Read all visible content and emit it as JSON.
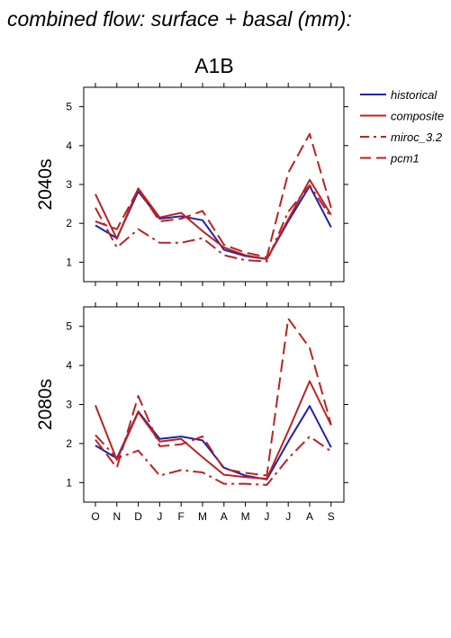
{
  "title": "combined flow: surface + basal (mm):",
  "chart_data": {
    "type": "line",
    "scenario": "A1B",
    "categories": [
      "O",
      "N",
      "D",
      "J",
      "F",
      "M",
      "A",
      "M",
      "J",
      "J",
      "A",
      "S"
    ],
    "yticks": [
      1,
      2,
      3,
      4,
      5
    ],
    "ylim": [
      0.5,
      5.5
    ],
    "legend": {
      "position": "top-right",
      "items": [
        {
          "name": "historical",
          "color": "#2222aa",
          "dash": "solid"
        },
        {
          "name": "composite",
          "color": "#bb2222",
          "dash": "solid"
        },
        {
          "name": "miroc_3.2",
          "color": "#bb2222",
          "dash": "dashdot"
        },
        {
          "name": "pcm1",
          "color": "#bb2222",
          "dash": "dash"
        }
      ]
    },
    "panels": [
      {
        "label": "2040s",
        "series": [
          {
            "name": "historical",
            "values": [
              1.95,
              1.62,
              2.82,
              2.12,
              2.18,
              2.08,
              1.32,
              1.16,
              1.08,
              2.05,
              2.96,
              1.9
            ]
          },
          {
            "name": "composite",
            "values": [
              2.75,
              1.6,
              2.9,
              2.15,
              2.27,
              1.8,
              1.38,
              1.18,
              1.08,
              2.1,
              3.12,
              2.22
            ]
          },
          {
            "name": "miroc_3.2",
            "values": [
              2.4,
              1.38,
              1.85,
              1.5,
              1.5,
              1.62,
              1.18,
              1.05,
              1.02,
              2.3,
              2.98,
              2.15
            ]
          },
          {
            "name": "pcm1",
            "values": [
              2.05,
              1.85,
              2.88,
              2.05,
              2.12,
              2.32,
              1.45,
              1.25,
              1.13,
              3.3,
              4.3,
              2.4
            ]
          }
        ]
      },
      {
        "label": "2080s",
        "series": [
          {
            "name": "historical",
            "values": [
              1.95,
              1.62,
              2.82,
              2.12,
              2.18,
              2.08,
              1.38,
              1.18,
              1.08,
              2.05,
              2.96,
              1.9
            ]
          },
          {
            "name": "composite",
            "values": [
              2.98,
              1.58,
              2.8,
              2.05,
              2.12,
              1.65,
              1.2,
              1.14,
              1.1,
              2.32,
              3.6,
              2.47
            ]
          },
          {
            "name": "miroc_3.2",
            "values": [
              2.22,
              1.62,
              1.82,
              1.18,
              1.32,
              1.26,
              0.97,
              0.97,
              0.94,
              1.62,
              2.18,
              1.8
            ]
          },
          {
            "name": "pcm1",
            "values": [
              2.1,
              1.38,
              3.22,
              1.93,
              1.98,
              2.18,
              1.35,
              1.25,
              1.18,
              5.2,
              4.45,
              2.48
            ]
          }
        ]
      }
    ]
  }
}
